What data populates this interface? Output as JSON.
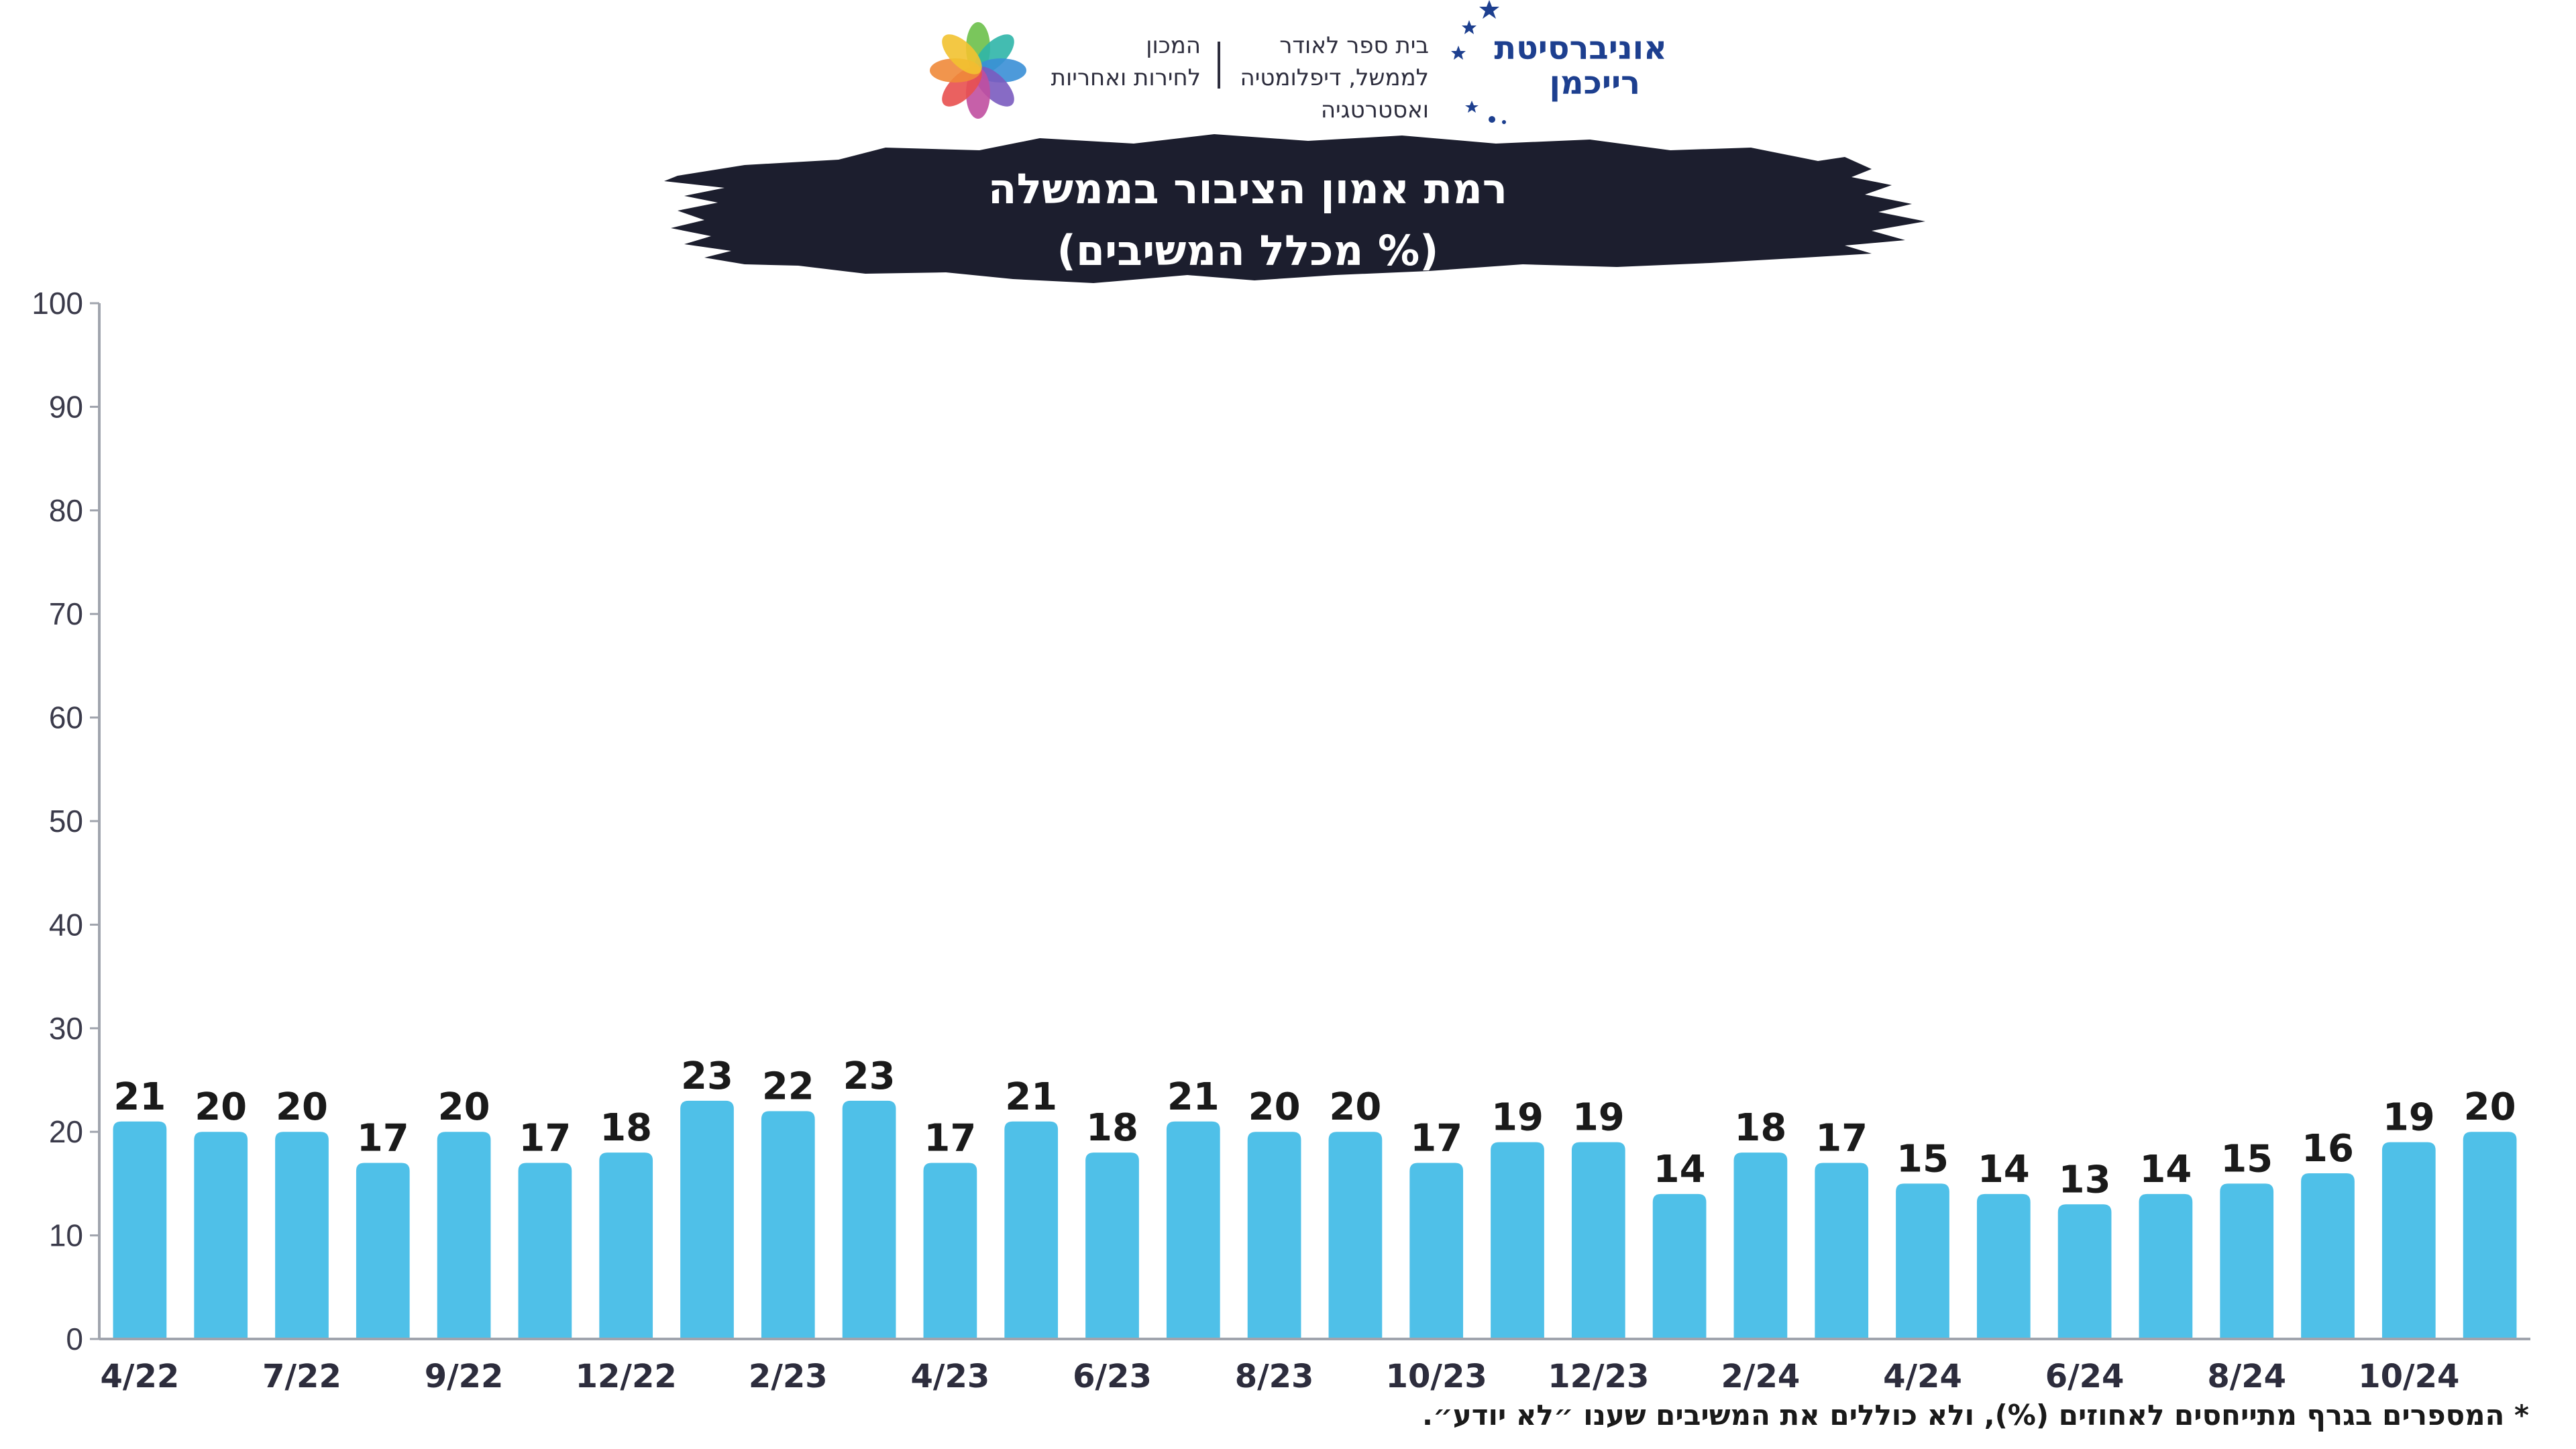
{
  "logos": {
    "institute_line1": "המכון",
    "institute_line2": "לחירות ואחריות",
    "school_line1": "בית ספר לאודר",
    "school_line2": "לממשל, דיפלומטיה",
    "school_line3": "ואסטרטגיה",
    "university_line1": "אוניברסיטת",
    "university_line2": "רייכמן"
  },
  "footnote": "* המספרים בגרף מתייחסים לאחוזים (%), ולא כוללים את המשיבים שענו ״לא יודע״.",
  "colors": {
    "bar": "#4fc0e8",
    "banner": "#1c1e2e",
    "axis": "#a0a4ad",
    "uni_blue": "#1d3f8f"
  },
  "chart_data": {
    "type": "bar",
    "title": "רמת אמון הציבור בממשלה",
    "subtitle": "(% מכלל המשיבים)",
    "ylim": [
      0,
      100
    ],
    "yticks": [
      0,
      10,
      20,
      30,
      40,
      50,
      60,
      70,
      80,
      90,
      100
    ],
    "grid": false,
    "tick_labels": [
      "4/22",
      "7/22",
      "9/22",
      "12/22",
      "2/23",
      "4/23",
      "6/23",
      "8/23",
      "10/23",
      "12/23",
      "2/24",
      "4/24",
      "6/24",
      "8/24",
      "10/24"
    ],
    "values": [
      21,
      20,
      20,
      17,
      20,
      17,
      18,
      23,
      22,
      23,
      17,
      21,
      18,
      21,
      20,
      20,
      17,
      19,
      19,
      14,
      18,
      17,
      15,
      14,
      13,
      14,
      15,
      16,
      19,
      20
    ],
    "data_labels": true
  }
}
